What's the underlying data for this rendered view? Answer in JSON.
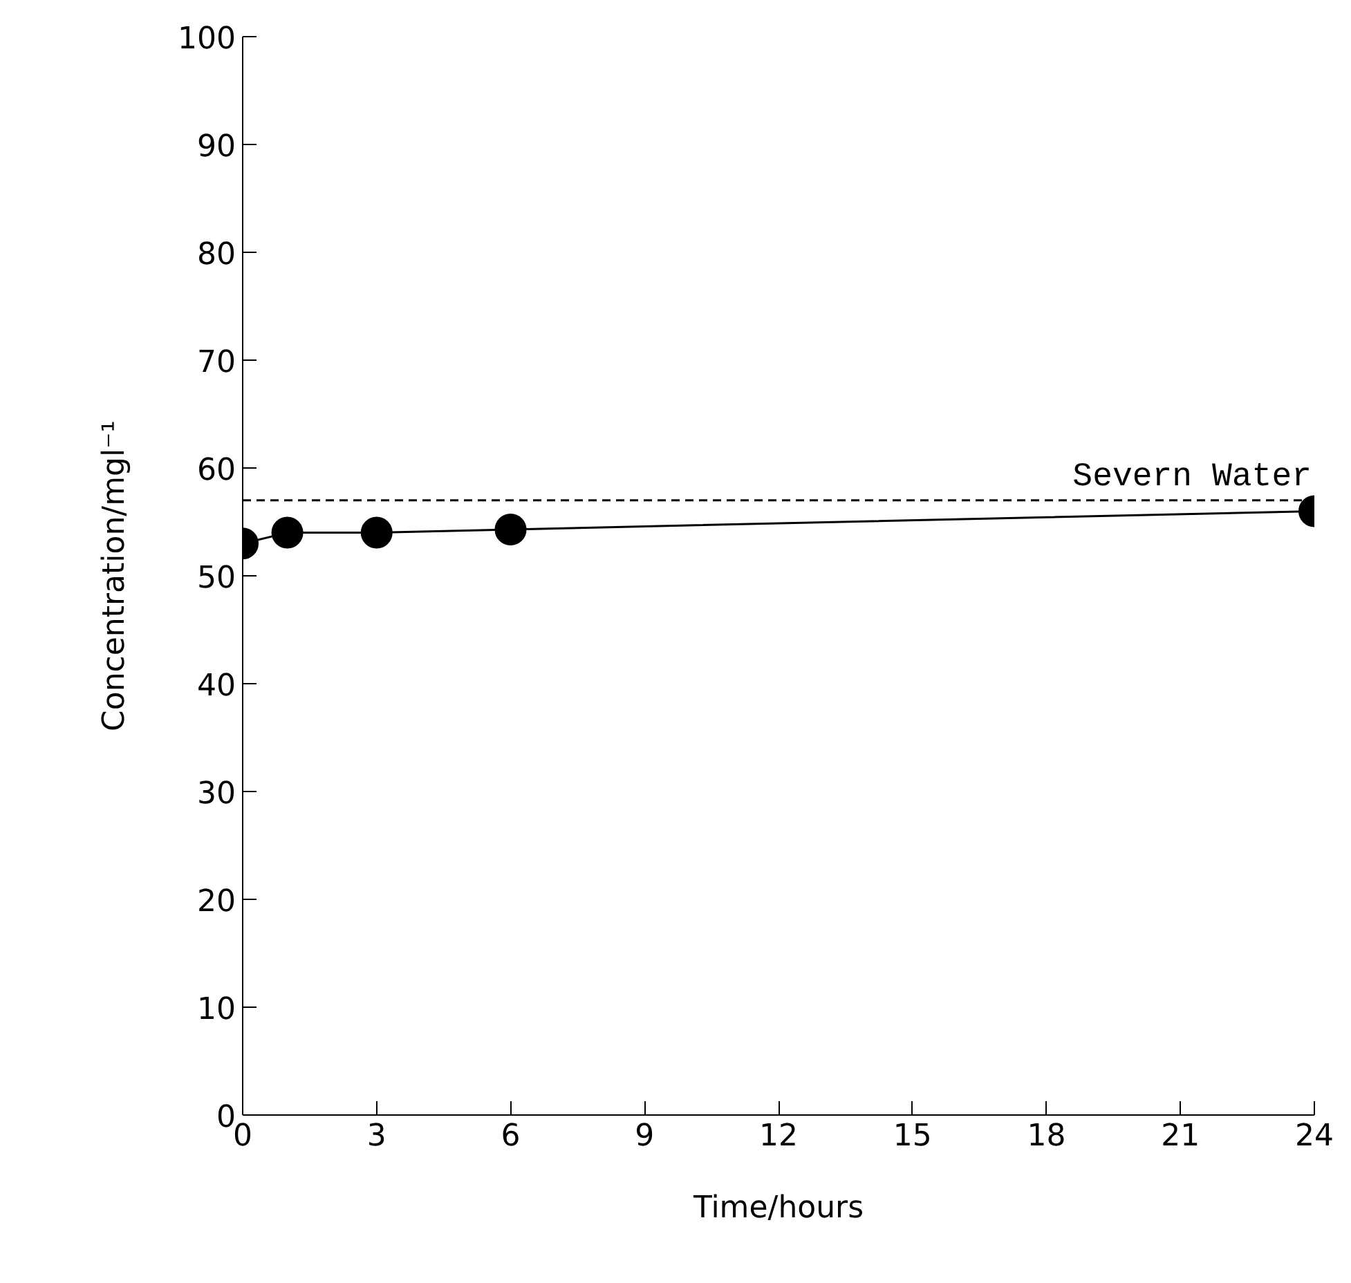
{
  "chart_data": {
    "type": "line",
    "xlabel": "Time/hours",
    "ylabel": "Concentration/mgl⁻¹",
    "x": [
      0,
      1,
      3,
      6,
      24
    ],
    "series": [
      {
        "color": "#000000",
        "values": [
          53,
          54,
          54,
          54.3,
          56
        ]
      }
    ],
    "xlim": [
      0,
      24
    ],
    "xticks": [
      0,
      3,
      6,
      9,
      12,
      15,
      18,
      21,
      24
    ],
    "ylim": [
      0,
      100
    ],
    "yticks": [
      0,
      10,
      20,
      30,
      40,
      50,
      60,
      70,
      80,
      90,
      100
    ],
    "ref_lines": [
      {
        "axis": "y",
        "value": 57,
        "label": "Severn Water",
        "line_style": "dashed",
        "color": "#000000"
      }
    ],
    "marker": "circle",
    "line_style": "solid",
    "grid": false
  }
}
